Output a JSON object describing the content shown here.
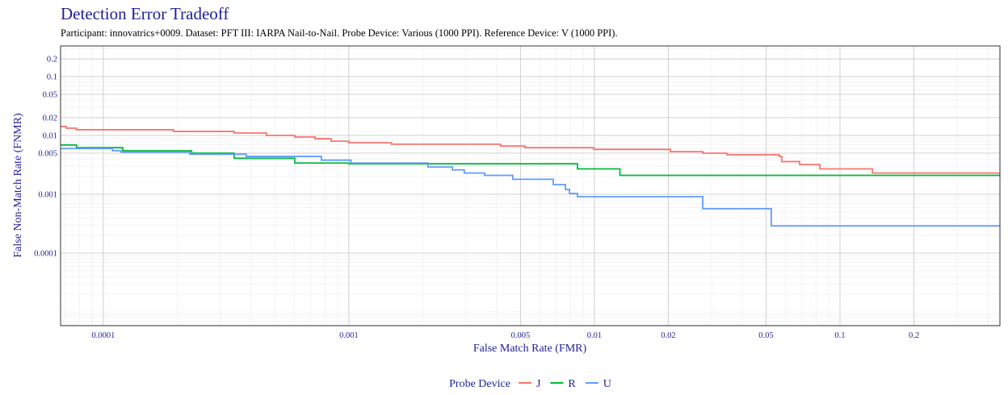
{
  "chart_data": {
    "type": "step",
    "title": "Detection Error Tradeoff",
    "subtitle": "Participant: innovatrics+0009. Dataset: PFT III: IARPA Nail-to-Nail. Probe Device: Various (1000 PPI). Reference Device: V (1000 PPI).",
    "x_label": "False Match Rate (FMR)",
    "y_label": "False Non-Match Rate (FNMR)",
    "x_log": true,
    "y_log": true,
    "grid": true,
    "legend_title": "Probe Device",
    "legend_position": "bottom",
    "xlim": [
      6.7e-05,
      0.448
    ],
    "ylim": [
      5.85e-06,
      0.332
    ],
    "xticks": [
      0.0001,
      0.001,
      0.005,
      0.01,
      0.02,
      0.05,
      0.1,
      0.2
    ],
    "yticks": [
      0.0001,
      0.001,
      0.005,
      0.01,
      0.02,
      0.05,
      0.1,
      0.2
    ],
    "series": [
      {
        "name": "J",
        "color": "#F8766D",
        "x": [
          6.7e-05,
          7.06e-05,
          7.78e-05,
          0.000193,
          0.000341,
          0.000462,
          0.000602,
          0.000728,
          0.000847,
          0.001,
          0.00149,
          0.00415,
          0.00521,
          0.00993,
          0.0204,
          0.0276,
          0.0346,
          0.0566,
          0.0579,
          0.0685,
          0.0828,
          0.1355,
          0.448
        ],
        "values": [
          0.0142,
          0.0133,
          0.0125,
          0.0117,
          0.011,
          0.01,
          0.0094,
          0.0088,
          0.008,
          0.0075,
          0.0071,
          0.0066,
          0.0062,
          0.0058,
          0.0053,
          0.005,
          0.0047,
          0.0044,
          0.0036,
          0.0032,
          0.0027,
          0.0023,
          0.0023
        ]
      },
      {
        "name": "R",
        "color": "#00BA38",
        "x": [
          6.7e-05,
          7.78e-05,
          0.00012,
          0.000229,
          0.000341,
          0.000602,
          0.001,
          0.00853,
          0.0127,
          0.448
        ],
        "values": [
          0.0069,
          0.0062,
          0.0055,
          0.005,
          0.0041,
          0.0034,
          0.0033,
          0.0027,
          0.0021,
          0.0021
        ]
      },
      {
        "name": "U",
        "color": "#619CFF",
        "x": [
          6.7e-05,
          0.000109,
          0.000118,
          0.000225,
          0.000382,
          0.000773,
          0.00102,
          0.0021,
          0.00264,
          0.00295,
          0.00357,
          0.00465,
          0.0068,
          0.00762,
          0.00791,
          0.00853,
          0.0276,
          0.0525,
          0.448
        ],
        "values": [
          0.006,
          0.0055,
          0.0052,
          0.0048,
          0.0044,
          0.0038,
          0.0034,
          0.0029,
          0.0026,
          0.0023,
          0.0021,
          0.0018,
          0.00146,
          0.00121,
          0.00103,
          0.00091,
          0.00057,
          0.00029,
          0.00029
        ]
      }
    ]
  }
}
